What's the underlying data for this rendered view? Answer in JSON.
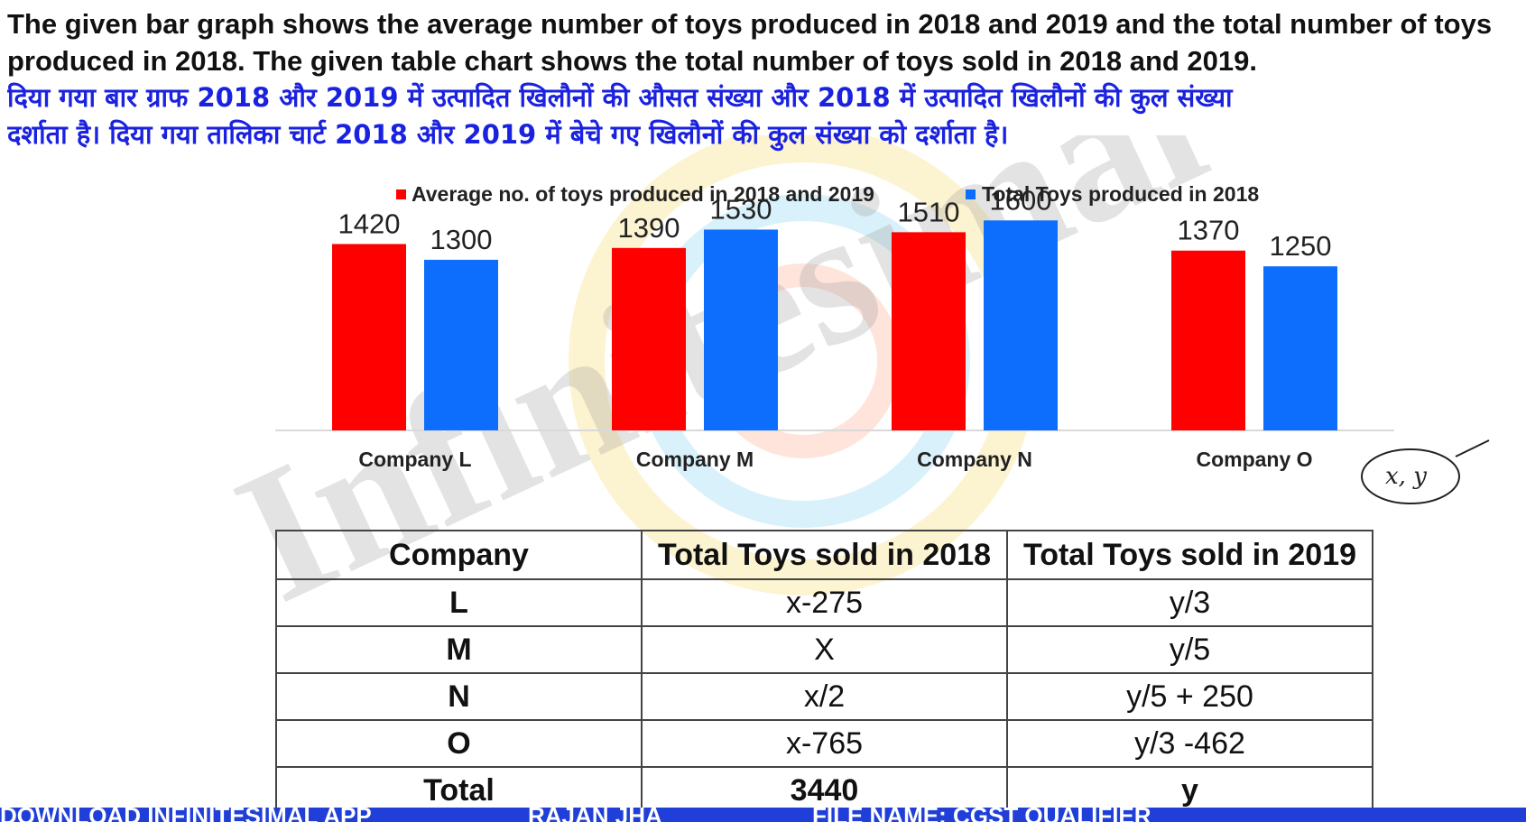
{
  "question": {
    "english_lines": [
      "The given bar graph shows the average number of toys produced in 2018 and 2019 and the total number of toys",
      "produced in 2018. The given table chart shows the total number of toys sold in 2018 and 2019."
    ],
    "hindi_lines": [
      "दिया गया बार ग्राफ 2018 और 2019 में उत्पादित खिलौनों की औसत संख्या और 2018 में उत्पादित खिलौनों की कुल संख्या",
      "दर्शाता है। दिया गया तालिका चार्ट 2018 और 2019 में बेचे गए खिलौनों की कुल संख्या को दर्शाता है।"
    ]
  },
  "watermark_text": "Infinitesimal",
  "colors": {
    "series_avg": "#ff0000",
    "series_total": "#0d6efd",
    "hindi_text": "#1a22e0",
    "bottom_bar": "#1f3fd8"
  },
  "chart_data": {
    "type": "bar",
    "title": "",
    "xlabel": "",
    "ylabel": "",
    "categories": [
      "Company L",
      "Company M",
      "Company N",
      "Company O"
    ],
    "series": [
      {
        "name": "Average no. of toys produced in 2018 and 2019",
        "values": [
          1420,
          1390,
          1510,
          1370
        ],
        "color": "#ff0000"
      },
      {
        "name": "Total Toys produced in 2018",
        "values": [
          1300,
          1530,
          1600,
          1250
        ],
        "color": "#0d6efd"
      }
    ],
    "ylim": [
      0,
      1650
    ],
    "grid": false,
    "legend": "top",
    "data_labels": true
  },
  "table": {
    "headers": [
      "Company",
      "Total Toys sold in 2018",
      "Total Toys sold in 2019"
    ],
    "rows": [
      [
        "L",
        "x-275",
        "y/3"
      ],
      [
        "M",
        "X",
        "y/5"
      ],
      [
        "N",
        "x/2",
        "y/5 + 250"
      ],
      [
        "O",
        "x-765",
        "y/3 -462"
      ]
    ],
    "total_row": [
      "Total",
      "3440",
      "y"
    ]
  },
  "annotation": "x, y",
  "bottom_bar": {
    "left_text": "DOWNLOAD INFINITESIMAL APP",
    "middle_text": "RAJAN JHA",
    "right_text": "FILE NAME: CGST QUALIFIER"
  }
}
